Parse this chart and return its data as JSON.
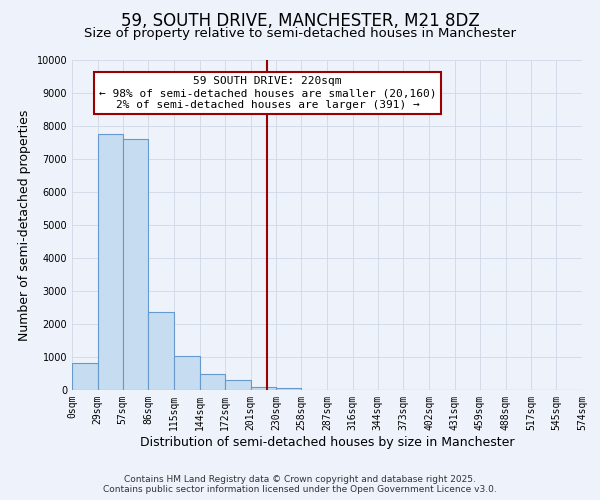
{
  "title": "59, SOUTH DRIVE, MANCHESTER, M21 8DZ",
  "subtitle": "Size of property relative to semi-detached houses in Manchester",
  "xlabel": "Distribution of semi-detached houses by size in Manchester",
  "ylabel": "Number of semi-detached properties",
  "bin_edges": [
    0,
    29,
    57,
    86,
    115,
    144,
    172,
    201,
    230,
    258,
    287,
    316,
    344,
    373,
    402,
    431,
    459,
    488,
    517,
    545,
    574
  ],
  "bar_heights": [
    820,
    7750,
    7600,
    2350,
    1020,
    470,
    300,
    100,
    60,
    0,
    0,
    0,
    0,
    0,
    0,
    0,
    0,
    0,
    0,
    0
  ],
  "bar_color": "#c6dcf0",
  "bar_edge_color": "#6699cc",
  "vline_x": 220,
  "vline_color": "#990000",
  "ylim": [
    0,
    10000
  ],
  "yticks": [
    0,
    1000,
    2000,
    3000,
    4000,
    5000,
    6000,
    7000,
    8000,
    9000,
    10000
  ],
  "xtick_labels": [
    "0sqm",
    "29sqm",
    "57sqm",
    "86sqm",
    "115sqm",
    "144sqm",
    "172sqm",
    "201sqm",
    "230sqm",
    "258sqm",
    "287sqm",
    "316sqm",
    "344sqm",
    "373sqm",
    "402sqm",
    "431sqm",
    "459sqm",
    "488sqm",
    "517sqm",
    "545sqm",
    "574sqm"
  ],
  "annotation_title": "59 SOUTH DRIVE: 220sqm",
  "annotation_line1": "← 98% of semi-detached houses are smaller (20,160)",
  "annotation_line2": "2% of semi-detached houses are larger (391) →",
  "annotation_box_color": "#ffffff",
  "annotation_box_edge": "#990000",
  "footnote1": "Contains HM Land Registry data © Crown copyright and database right 2025.",
  "footnote2": "Contains public sector information licensed under the Open Government Licence v3.0.",
  "bg_color": "#eef2fa",
  "grid_color": "#d0d8e8",
  "title_fontsize": 12,
  "subtitle_fontsize": 9.5,
  "label_fontsize": 9,
  "tick_fontsize": 7,
  "footnote_fontsize": 6.5
}
